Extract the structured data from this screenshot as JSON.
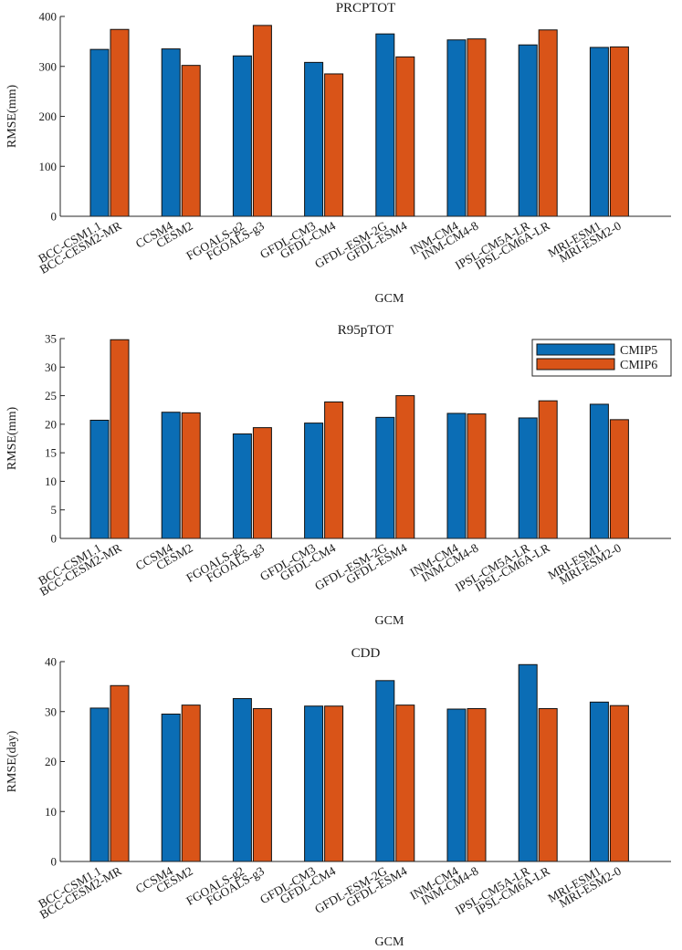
{
  "chart_data": [
    {
      "type": "bar",
      "title": "PRCPTOT",
      "xlabel": "GCM",
      "ylabel": "RMSE(mm)",
      "ylim": [
        0,
        400
      ],
      "yticks": [
        0,
        100,
        200,
        300,
        400
      ],
      "categories": [
        "BCC-CSM1.1",
        "BCC-CESM2-MR",
        "CCSM4",
        "CESM2",
        "FGOALS-g2",
        "FGOALS-g3",
        "GFDL-CM3",
        "GFDL-CM4",
        "GFDL-ESM-2G",
        "GFDL-ESM4",
        "INM-CM4",
        "INM-CM4-8",
        "IPSL-CM5A-LR",
        "IPSL-CM6A-LR",
        "MRI-ESM1",
        "MRI-ESM2-0"
      ],
      "groups": [
        {
          "cmip5": 334,
          "cmip6": 374
        },
        {
          "cmip5": 335,
          "cmip6": 302
        },
        {
          "cmip5": 321,
          "cmip6": 382
        },
        {
          "cmip5": 308,
          "cmip6": 285
        },
        {
          "cmip5": 365,
          "cmip6": 319
        },
        {
          "cmip5": 353,
          "cmip6": 355
        },
        {
          "cmip5": 343,
          "cmip6": 373
        },
        {
          "cmip5": 338,
          "cmip6": 339
        }
      ],
      "legend": null
    },
    {
      "type": "bar",
      "title": "R95pTOT",
      "xlabel": "GCM",
      "ylabel": "RMSE(mm)",
      "ylim": [
        0,
        35
      ],
      "yticks": [
        0,
        5,
        10,
        15,
        20,
        25,
        30,
        35
      ],
      "categories": [
        "BCC-CSM1.1",
        "BCC-CESM2-MR",
        "CCSM4",
        "CESM2",
        "FGOALS-g2",
        "FGOALS-g3",
        "GFDL-CM3",
        "GFDL-CM4",
        "GFDL-ESM-2G",
        "GFDL-ESM4",
        "INM-CM4",
        "INM-CM4-8",
        "IPSL-CM5A-LR",
        "IPSL-CM6A-LR",
        "MRI-ESM1",
        "MRI-ESM2-0"
      ],
      "groups": [
        {
          "cmip5": 20.7,
          "cmip6": 34.8
        },
        {
          "cmip5": 22.1,
          "cmip6": 22.0
        },
        {
          "cmip5": 18.3,
          "cmip6": 19.4
        },
        {
          "cmip5": 20.2,
          "cmip6": 23.9
        },
        {
          "cmip5": 21.2,
          "cmip6": 25.0
        },
        {
          "cmip5": 21.9,
          "cmip6": 21.8
        },
        {
          "cmip5": 21.1,
          "cmip6": 24.1
        },
        {
          "cmip5": 23.5,
          "cmip6": 20.8
        }
      ],
      "legend": {
        "position": "top-right",
        "entries": [
          "CMIP5",
          "CMIP6"
        ]
      }
    },
    {
      "type": "bar",
      "title": "CDD",
      "xlabel": "GCM",
      "ylabel": "RMSE(day)",
      "ylim": [
        0,
        40
      ],
      "yticks": [
        0,
        10,
        20,
        30,
        40
      ],
      "categories": [
        "BCC-CSM1.1",
        "BCC-CESM2-MR",
        "CCSM4",
        "CESM2",
        "FGOALS-g2",
        "FGOALS-g3",
        "GFDL-CM3",
        "GFDL-CM4",
        "GFDL-ESM-2G",
        "GFDL-ESM4",
        "INM-CM4",
        "INM-CM4-8",
        "IPSL-CM5A-LR",
        "IPSL-CM6A-LR",
        "MRI-ESM1",
        "MRI-ESM2-0"
      ],
      "groups": [
        {
          "cmip5": 30.7,
          "cmip6": 35.2
        },
        {
          "cmip5": 29.5,
          "cmip6": 31.3
        },
        {
          "cmip5": 32.6,
          "cmip6": 30.6
        },
        {
          "cmip5": 31.1,
          "cmip6": 31.1
        },
        {
          "cmip5": 36.2,
          "cmip6": 31.3
        },
        {
          "cmip5": 30.5,
          "cmip6": 30.6
        },
        {
          "cmip5": 39.4,
          "cmip6": 30.6
        },
        {
          "cmip5": 31.9,
          "cmip6": 31.2
        }
      ],
      "legend": null
    }
  ],
  "colors": {
    "cmip5": "#0b6db5",
    "cmip6": "#d95418",
    "bar_edge": "#111111"
  }
}
